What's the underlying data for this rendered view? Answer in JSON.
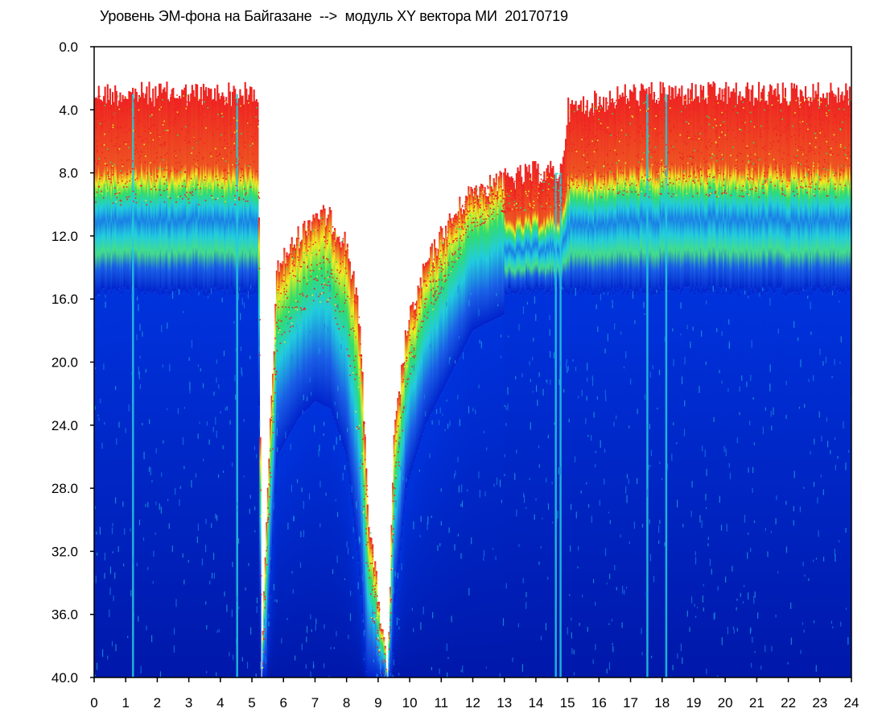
{
  "chart_data": {
    "type": "heatmap",
    "title": "Уровень ЭМ-фона на Байгазане  -->  модуль XY вектора МИ  20170719",
    "xlabel": "",
    "ylabel": "",
    "xlim": [
      0,
      24
    ],
    "ylim": [
      0,
      40
    ],
    "y_inverted": true,
    "x_ticks": [
      "0",
      "1",
      "2",
      "3",
      "4",
      "5",
      "6",
      "7",
      "8",
      "9",
      "10",
      "11",
      "12",
      "13",
      "14",
      "15",
      "16",
      "17",
      "18",
      "19",
      "20",
      "21",
      "22",
      "23",
      "24"
    ],
    "y_ticks": [
      "0.0",
      "4.0",
      "8.0",
      "12.0",
      "16.0",
      "20.0",
      "24.0",
      "28.0",
      "32.0",
      "36.0",
      "40.0"
    ],
    "colors": {
      "low": "#0022cc",
      "mid_low": "#1a7fe6",
      "cyan": "#22ccdd",
      "green": "#33dd66",
      "yellow": "#eeee22",
      "high": "#ee2222",
      "frame": "#000000",
      "background": "#ffffff"
    },
    "signal_upper_edge": [
      {
        "x": 0.0,
        "top": 3.0,
        "band": 8.5
      },
      {
        "x": 5.2,
        "top": 3.0,
        "band": 8.5
      },
      {
        "x": 5.3,
        "top": 40.0,
        "band": 40.0
      },
      {
        "x": 5.5,
        "top": 28.0,
        "band": 30.0
      },
      {
        "x": 5.8,
        "top": 14.0,
        "band": 18.0
      },
      {
        "x": 6.5,
        "top": 12.0,
        "band": 15.5
      },
      {
        "x": 7.0,
        "top": 10.5,
        "band": 14.5
      },
      {
        "x": 7.5,
        "top": 11.0,
        "band": 15.0
      },
      {
        "x": 8.0,
        "top": 12.5,
        "band": 18.0
      },
      {
        "x": 8.4,
        "top": 17.0,
        "band": 25.0
      },
      {
        "x": 8.7,
        "top": 30.0,
        "band": 34.0
      },
      {
        "x": 9.3,
        "top": 40.0,
        "band": 40.0
      },
      {
        "x": 9.5,
        "top": 25.0,
        "band": 28.0
      },
      {
        "x": 9.9,
        "top": 18.0,
        "band": 20.0
      },
      {
        "x": 10.5,
        "top": 14.0,
        "band": 16.0
      },
      {
        "x": 11.0,
        "top": 12.0,
        "band": 14.0
      },
      {
        "x": 12.0,
        "top": 9.0,
        "band": 10.0
      },
      {
        "x": 13.0,
        "top": 8.5,
        "band": 9.0
      },
      {
        "x": 14.0,
        "top": 8.0,
        "band": 8.8
      },
      {
        "x": 14.8,
        "top": 8.0,
        "band": 8.8
      },
      {
        "x": 15.0,
        "top": 4.0,
        "band": 8.0
      },
      {
        "x": 17.0,
        "top": 3.0,
        "band": 8.0
      },
      {
        "x": 19.0,
        "top": 3.0,
        "band": 8.0
      },
      {
        "x": 24.0,
        "top": 3.0,
        "band": 8.0
      }
    ],
    "notable_spikes_hours": [
      1.2,
      4.5,
      14.6,
      14.75,
      17.5,
      18.1
    ]
  }
}
